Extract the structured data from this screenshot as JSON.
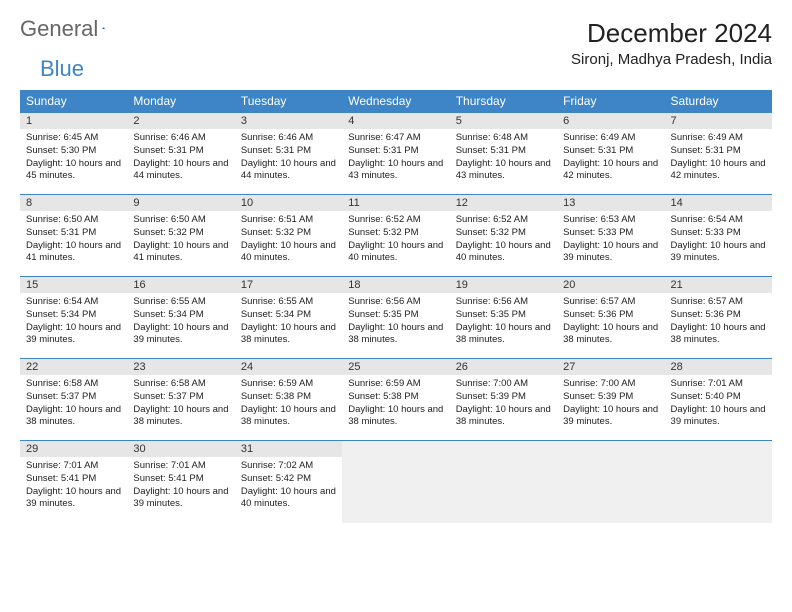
{
  "logo": {
    "text1": "General",
    "text2": "Blue"
  },
  "title": "December 2024",
  "location": "Sironj, Madhya Pradesh, India",
  "colors": {
    "header_bg": "#3d85c6",
    "daynum_bg": "#e6e6e6",
    "rule": "#3d85c6"
  },
  "weekdays": [
    "Sunday",
    "Monday",
    "Tuesday",
    "Wednesday",
    "Thursday",
    "Friday",
    "Saturday"
  ],
  "days": [
    {
      "n": 1,
      "sr": "6:45 AM",
      "ss": "5:30 PM",
      "dl": "10 hours and 45 minutes."
    },
    {
      "n": 2,
      "sr": "6:46 AM",
      "ss": "5:31 PM",
      "dl": "10 hours and 44 minutes."
    },
    {
      "n": 3,
      "sr": "6:46 AM",
      "ss": "5:31 PM",
      "dl": "10 hours and 44 minutes."
    },
    {
      "n": 4,
      "sr": "6:47 AM",
      "ss": "5:31 PM",
      "dl": "10 hours and 43 minutes."
    },
    {
      "n": 5,
      "sr": "6:48 AM",
      "ss": "5:31 PM",
      "dl": "10 hours and 43 minutes."
    },
    {
      "n": 6,
      "sr": "6:49 AM",
      "ss": "5:31 PM",
      "dl": "10 hours and 42 minutes."
    },
    {
      "n": 7,
      "sr": "6:49 AM",
      "ss": "5:31 PM",
      "dl": "10 hours and 42 minutes."
    },
    {
      "n": 8,
      "sr": "6:50 AM",
      "ss": "5:31 PM",
      "dl": "10 hours and 41 minutes."
    },
    {
      "n": 9,
      "sr": "6:50 AM",
      "ss": "5:32 PM",
      "dl": "10 hours and 41 minutes."
    },
    {
      "n": 10,
      "sr": "6:51 AM",
      "ss": "5:32 PM",
      "dl": "10 hours and 40 minutes."
    },
    {
      "n": 11,
      "sr": "6:52 AM",
      "ss": "5:32 PM",
      "dl": "10 hours and 40 minutes."
    },
    {
      "n": 12,
      "sr": "6:52 AM",
      "ss": "5:32 PM",
      "dl": "10 hours and 40 minutes."
    },
    {
      "n": 13,
      "sr": "6:53 AM",
      "ss": "5:33 PM",
      "dl": "10 hours and 39 minutes."
    },
    {
      "n": 14,
      "sr": "6:54 AM",
      "ss": "5:33 PM",
      "dl": "10 hours and 39 minutes."
    },
    {
      "n": 15,
      "sr": "6:54 AM",
      "ss": "5:34 PM",
      "dl": "10 hours and 39 minutes."
    },
    {
      "n": 16,
      "sr": "6:55 AM",
      "ss": "5:34 PM",
      "dl": "10 hours and 39 minutes."
    },
    {
      "n": 17,
      "sr": "6:55 AM",
      "ss": "5:34 PM",
      "dl": "10 hours and 38 minutes."
    },
    {
      "n": 18,
      "sr": "6:56 AM",
      "ss": "5:35 PM",
      "dl": "10 hours and 38 minutes."
    },
    {
      "n": 19,
      "sr": "6:56 AM",
      "ss": "5:35 PM",
      "dl": "10 hours and 38 minutes."
    },
    {
      "n": 20,
      "sr": "6:57 AM",
      "ss": "5:36 PM",
      "dl": "10 hours and 38 minutes."
    },
    {
      "n": 21,
      "sr": "6:57 AM",
      "ss": "5:36 PM",
      "dl": "10 hours and 38 minutes."
    },
    {
      "n": 22,
      "sr": "6:58 AM",
      "ss": "5:37 PM",
      "dl": "10 hours and 38 minutes."
    },
    {
      "n": 23,
      "sr": "6:58 AM",
      "ss": "5:37 PM",
      "dl": "10 hours and 38 minutes."
    },
    {
      "n": 24,
      "sr": "6:59 AM",
      "ss": "5:38 PM",
      "dl": "10 hours and 38 minutes."
    },
    {
      "n": 25,
      "sr": "6:59 AM",
      "ss": "5:38 PM",
      "dl": "10 hours and 38 minutes."
    },
    {
      "n": 26,
      "sr": "7:00 AM",
      "ss": "5:39 PM",
      "dl": "10 hours and 38 minutes."
    },
    {
      "n": 27,
      "sr": "7:00 AM",
      "ss": "5:39 PM",
      "dl": "10 hours and 39 minutes."
    },
    {
      "n": 28,
      "sr": "7:01 AM",
      "ss": "5:40 PM",
      "dl": "10 hours and 39 minutes."
    },
    {
      "n": 29,
      "sr": "7:01 AM",
      "ss": "5:41 PM",
      "dl": "10 hours and 39 minutes."
    },
    {
      "n": 30,
      "sr": "7:01 AM",
      "ss": "5:41 PM",
      "dl": "10 hours and 39 minutes."
    },
    {
      "n": 31,
      "sr": "7:02 AM",
      "ss": "5:42 PM",
      "dl": "10 hours and 40 minutes."
    }
  ],
  "labels": {
    "sunrise": "Sunrise:",
    "sunset": "Sunset:",
    "daylight": "Daylight:"
  },
  "layout": {
    "start_weekday": 0,
    "total_cells": 35
  }
}
